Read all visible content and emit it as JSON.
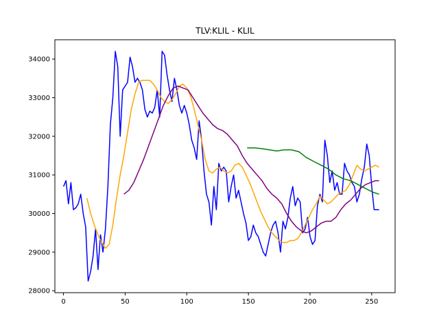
{
  "chart_data": {
    "type": "line",
    "title": "TLV:KLIL - KLIL",
    "xlabel": "",
    "ylabel": "",
    "xlim": [
      -7,
      269
    ],
    "ylim": [
      27950,
      34500
    ],
    "x_ticks": [
      0,
      50,
      100,
      150,
      200,
      250
    ],
    "y_ticks": [
      28000,
      29000,
      30000,
      31000,
      32000,
      33000,
      34000
    ],
    "grid": false,
    "series": [
      {
        "color": "#0000ff",
        "x": [
          0,
          2,
          4,
          6,
          8,
          10,
          12,
          14,
          16,
          18,
          20,
          22,
          24,
          26,
          28,
          30,
          32,
          34,
          36,
          38,
          40,
          42,
          44,
          46,
          48,
          50,
          52,
          54,
          56,
          58,
          60,
          62,
          64,
          66,
          68,
          70,
          72,
          74,
          76,
          78,
          80,
          82,
          84,
          86,
          88,
          90,
          92,
          94,
          96,
          98,
          100,
          102,
          104,
          106,
          108,
          110,
          112,
          114,
          116,
          118,
          120,
          122,
          124,
          126,
          128,
          130,
          132,
          134,
          136,
          138,
          140,
          142,
          144,
          146,
          148,
          150,
          152,
          154,
          156,
          158,
          160,
          162,
          164,
          166,
          168,
          170,
          172,
          174,
          176,
          178,
          180,
          182,
          184,
          186,
          188,
          190,
          192,
          194,
          196,
          198,
          200,
          202,
          204,
          206,
          208,
          210,
          212,
          214,
          216,
          218,
          220,
          222,
          224,
          226,
          228,
          230,
          232,
          234,
          236,
          238,
          240,
          242,
          244,
          246,
          248,
          250,
          252,
          254,
          256
        ],
        "y": [
          30700,
          30850,
          30250,
          30800,
          30100,
          30150,
          30250,
          30500,
          30000,
          29650,
          28250,
          28500,
          28900,
          29600,
          28550,
          29450,
          29000,
          29600,
          30700,
          32300,
          33000,
          34200,
          33800,
          32000,
          33200,
          33300,
          33400,
          34050,
          33800,
          33400,
          33500,
          33400,
          33200,
          32700,
          32500,
          32650,
          32600,
          32750,
          33200,
          32500,
          34200,
          34100,
          33600,
          33200,
          32900,
          33500,
          33200,
          32800,
          32600,
          32800,
          32600,
          32300,
          31900,
          31700,
          31400,
          32400,
          31900,
          31100,
          30500,
          30300,
          29700,
          30700,
          30100,
          31300,
          31100,
          31200,
          31100,
          30300,
          30700,
          31000,
          30400,
          30600,
          30300,
          30000,
          29750,
          29300,
          29400,
          29700,
          29500,
          29400,
          29200,
          29000,
          28900,
          29200,
          29500,
          29700,
          29800,
          29500,
          29000,
          29800,
          29600,
          29900,
          30400,
          30700,
          30200,
          30400,
          30300,
          29500,
          29600,
          29900,
          29400,
          29200,
          29300,
          30200,
          30500,
          30300,
          31900,
          31500,
          30800,
          31100,
          30600,
          30800,
          30500,
          30500,
          31300,
          31100,
          31000,
          30800,
          30700,
          30300,
          30500,
          30900,
          31200,
          31800,
          31500,
          30700,
          30100,
          30100,
          30100
        ]
      },
      {
        "color": "#ffa500",
        "x": [
          19,
          22,
          25,
          28,
          31,
          34,
          37,
          40,
          43,
          46,
          49,
          52,
          55,
          58,
          61,
          64,
          67,
          70,
          73,
          76,
          79,
          82,
          85,
          88,
          91,
          94,
          97,
          100,
          103,
          106,
          109,
          112,
          115,
          118,
          121,
          124,
          127,
          130,
          133,
          136,
          139,
          142,
          145,
          148,
          151,
          154,
          157,
          160,
          163,
          166,
          169,
          172,
          175,
          178,
          181,
          184,
          187,
          190,
          193,
          196,
          199,
          202,
          205,
          208,
          211,
          214,
          217,
          220,
          223,
          226,
          229,
          232,
          235,
          238,
          241,
          244,
          247,
          250,
          253,
          256
        ],
        "y": [
          30400,
          30000,
          29700,
          29450,
          29250,
          29100,
          29200,
          29700,
          30400,
          31000,
          31500,
          32100,
          32700,
          33100,
          33400,
          33450,
          33450,
          33450,
          33350,
          33200,
          33000,
          32900,
          32850,
          32950,
          33100,
          33300,
          33350,
          33250,
          33050,
          32700,
          32300,
          31900,
          31400,
          31100,
          31050,
          31150,
          31200,
          31100,
          31050,
          31100,
          31250,
          31300,
          31200,
          31000,
          30800,
          30550,
          30300,
          30050,
          29850,
          29650,
          29500,
          29400,
          29300,
          29250,
          29250,
          29300,
          29300,
          29350,
          29500,
          29700,
          29900,
          30100,
          30250,
          30450,
          30350,
          30250,
          30300,
          30400,
          30500,
          30550,
          30600,
          30750,
          31000,
          31250,
          31150,
          31100,
          31150,
          31200,
          31250,
          31200
        ]
      },
      {
        "color": "#800080",
        "x": [
          49,
          53,
          57,
          61,
          65,
          69,
          73,
          77,
          81,
          85,
          89,
          93,
          97,
          101,
          105,
          109,
          113,
          117,
          121,
          125,
          129,
          133,
          137,
          141,
          145,
          149,
          153,
          157,
          161,
          165,
          169,
          173,
          177,
          181,
          185,
          189,
          193,
          197,
          201,
          205,
          209,
          213,
          217,
          221,
          225,
          229,
          233,
          237,
          241,
          245,
          249,
          253,
          256
        ],
        "y": [
          30500,
          30600,
          30800,
          31100,
          31400,
          31750,
          32100,
          32450,
          32800,
          33050,
          33250,
          33300,
          33250,
          33200,
          33000,
          32800,
          32600,
          32450,
          32300,
          32200,
          32150,
          32050,
          31900,
          31750,
          31500,
          31300,
          31150,
          31000,
          30850,
          30650,
          30500,
          30400,
          30250,
          30000,
          29800,
          29650,
          29550,
          29500,
          29550,
          29650,
          29750,
          29800,
          29800,
          29900,
          30100,
          30250,
          30350,
          30500,
          30650,
          30750,
          30800,
          30850,
          30850
        ]
      },
      {
        "color": "#008000",
        "x": [
          149,
          155,
          161,
          167,
          173,
          179,
          185,
          191,
          197,
          203,
          209,
          215,
          221,
          227,
          233,
          239,
          245,
          251,
          256
        ],
        "y": [
          31700,
          31700,
          31680,
          31650,
          31620,
          31650,
          31650,
          31600,
          31450,
          31350,
          31250,
          31150,
          31000,
          30900,
          30850,
          30750,
          30650,
          30550,
          30500
        ]
      }
    ]
  }
}
